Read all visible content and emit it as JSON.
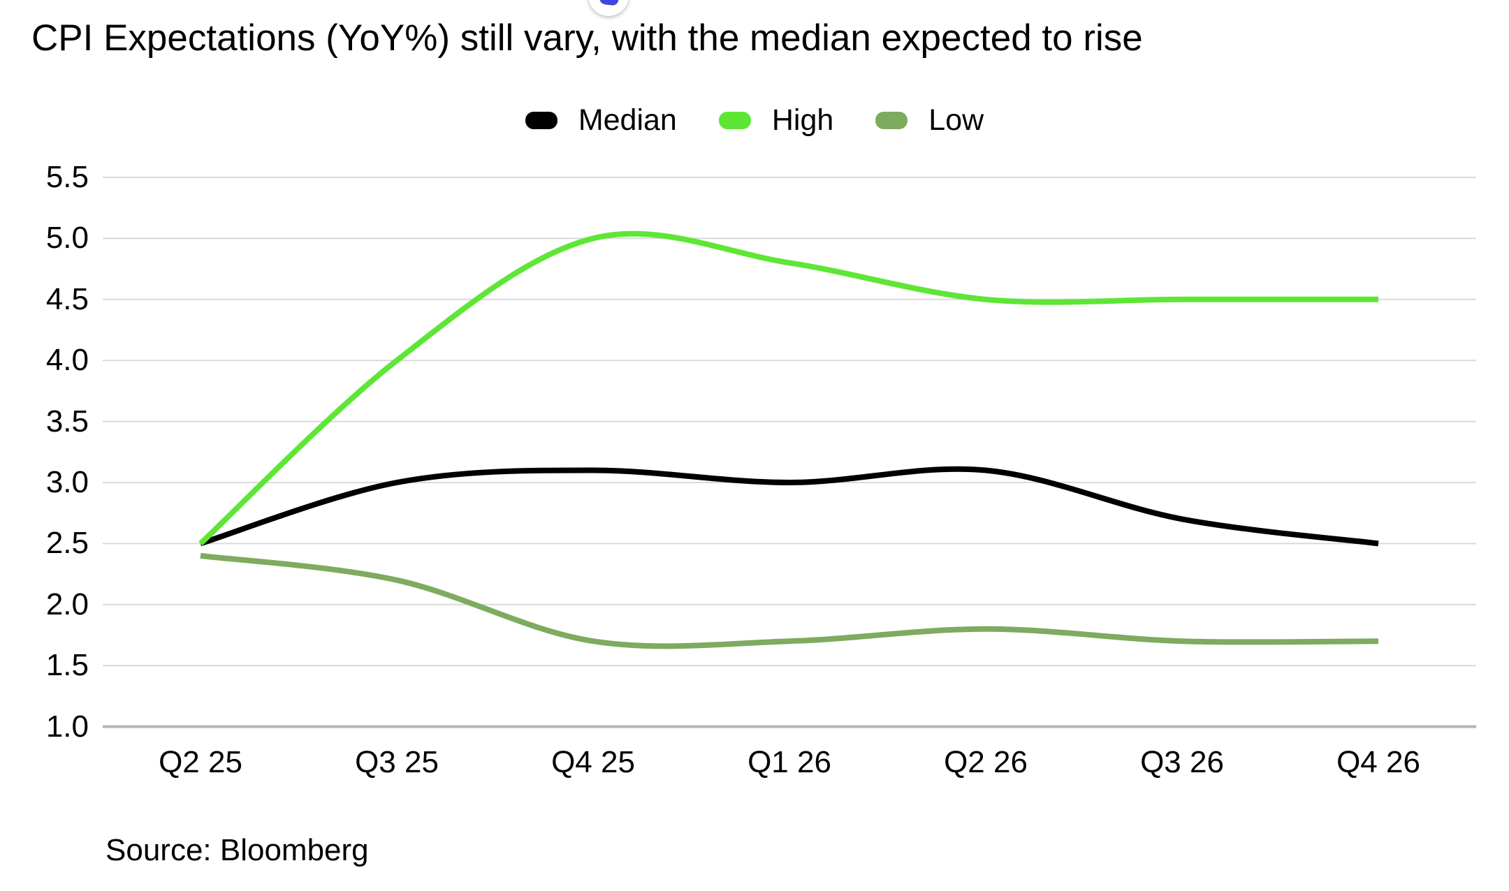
{
  "chart": {
    "title": "CPI Expectations (YoY%) still vary, with the median expected to rise"
  },
  "chart_data": {
    "type": "line",
    "title": "CPI Expectations (YoY%) still vary, with the median expected to rise",
    "categories": [
      "Q2 25",
      "Q3 25",
      "Q4 25",
      "Q1 26",
      "Q2 26",
      "Q3 26",
      "Q4 26"
    ],
    "series": [
      {
        "name": "Median",
        "color": "#000000",
        "values": [
          2.5,
          3.0,
          3.1,
          3.0,
          3.1,
          2.7,
          2.5
        ]
      },
      {
        "name": "High",
        "color": "#5ee636",
        "values": [
          2.5,
          4.0,
          5.0,
          4.8,
          4.5,
          4.5,
          4.5
        ]
      },
      {
        "name": "Low",
        "color": "#7dab5f",
        "values": [
          2.4,
          2.2,
          1.7,
          1.7,
          1.8,
          1.7,
          1.7
        ]
      }
    ],
    "xlabel": "",
    "ylabel": "",
    "ylim": [
      1.0,
      5.5
    ],
    "y_ticks": [
      5.5,
      5.0,
      4.5,
      4.0,
      3.5,
      3.0,
      2.5,
      2.0,
      1.5,
      1.0
    ],
    "grid": true,
    "legend_position": "top",
    "line_style": "smooth"
  },
  "source": {
    "text": "Source: Bloomberg"
  },
  "colors": {
    "gridline": "#d9d9d9",
    "axis_line": "#b5b5b5",
    "background": "#ffffff",
    "fab_glyph": "#3d46dd"
  }
}
